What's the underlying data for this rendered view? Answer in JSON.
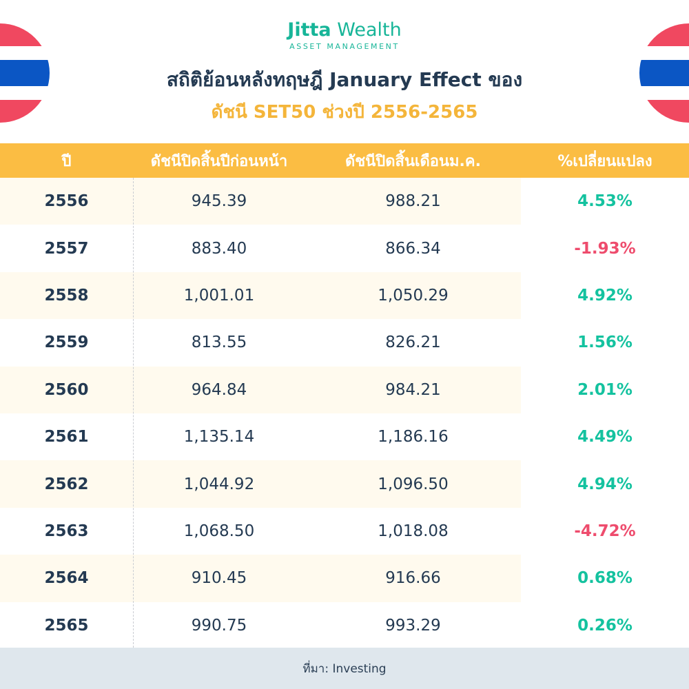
{
  "brand": {
    "name_bold": "Jitta",
    "name_light": " Wealth",
    "tagline": "ASSET MANAGEMENT",
    "color": "#17b598"
  },
  "title_line1": "สถิติย้อนหลังทฤษฎี January Effect ของ",
  "title_line2": "ดัชนี SET50 ช่วงปี 2556-2565",
  "colors": {
    "header_bg": "#fbbd43",
    "positive": "#14c29f",
    "negative": "#ee4c6d",
    "flag_red": "#f04860",
    "flag_blue": "#0b56c4"
  },
  "flag_icons": [
    "thailand-flag-icon",
    "thailand-flag-icon"
  ],
  "chart_data": {
    "type": "table",
    "columns": [
      "ปี",
      "ดัชนีปิดสิ้นปีก่อนหน้า",
      "ดัชนีปิดสิ้นเดือนม.ค.",
      "%เปลี่ยนแปลง"
    ],
    "rows": [
      {
        "year": "2556",
        "prev_close": "945.39",
        "jan_close": "988.21",
        "change": "4.53%",
        "sign": "pos"
      },
      {
        "year": "2557",
        "prev_close": "883.40",
        "jan_close": "866.34",
        "change": "-1.93%",
        "sign": "neg"
      },
      {
        "year": "2558",
        "prev_close": "1,001.01",
        "jan_close": "1,050.29",
        "change": "4.92%",
        "sign": "pos"
      },
      {
        "year": "2559",
        "prev_close": "813.55",
        "jan_close": "826.21",
        "change": "1.56%",
        "sign": "pos"
      },
      {
        "year": "2560",
        "prev_close": "964.84",
        "jan_close": "984.21",
        "change": "2.01%",
        "sign": "pos"
      },
      {
        "year": "2561",
        "prev_close": "1,135.14",
        "jan_close": "1,186.16",
        "change": "4.49%",
        "sign": "pos"
      },
      {
        "year": "2562",
        "prev_close": "1,044.92",
        "jan_close": "1,096.50",
        "change": "4.94%",
        "sign": "pos"
      },
      {
        "year": "2563",
        "prev_close": "1,068.50",
        "jan_close": "1,018.08",
        "change": "-4.72%",
        "sign": "neg"
      },
      {
        "year": "2564",
        "prev_close": "910.45",
        "jan_close": "916.66",
        "change": "0.68%",
        "sign": "pos"
      },
      {
        "year": "2565",
        "prev_close": "990.75",
        "jan_close": "993.29",
        "change": "0.26%",
        "sign": "pos"
      }
    ]
  },
  "source": "ที่มา: Investing"
}
